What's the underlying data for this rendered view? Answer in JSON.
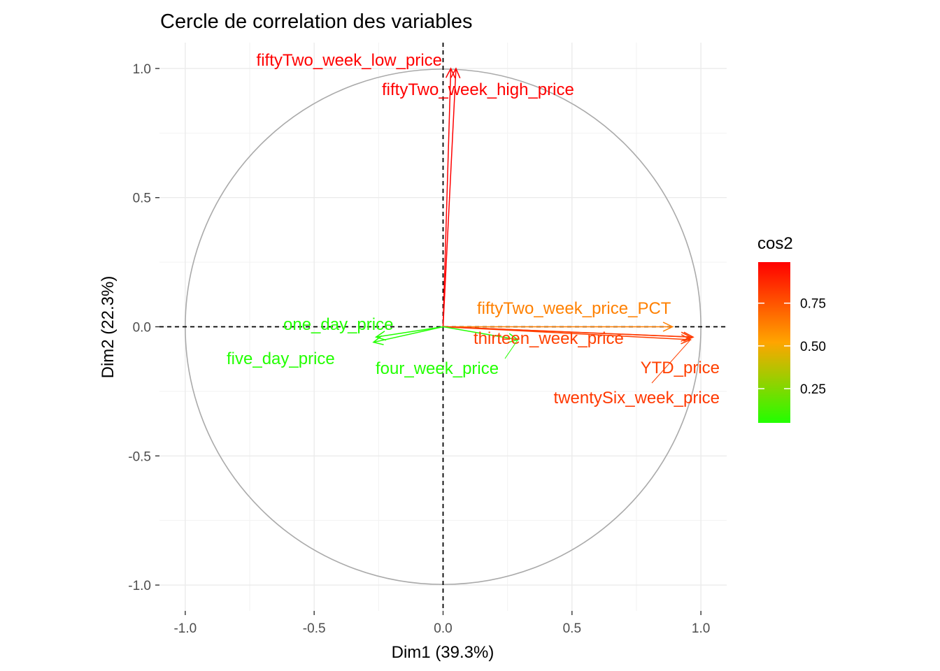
{
  "chart_data": {
    "type": "scatter",
    "subtype": "pca-correlation-circle",
    "title": "Cercle de correlation des variables",
    "xlabel": "Dim1 (39.3%)",
    "ylabel": "Dim2 (22.3%)",
    "xlim": [
      -1.1,
      1.1
    ],
    "ylim": [
      -1.1,
      1.1
    ],
    "xticks": [
      -1.0,
      -0.5,
      0.0,
      0.5,
      1.0
    ],
    "yticks": [
      -1.0,
      -0.5,
      0.0,
      0.5,
      1.0
    ],
    "x_tick_labels": [
      "-1.0",
      "-0.5",
      "0.0",
      "0.5",
      "1.0"
    ],
    "y_tick_labels": [
      "1.0",
      "0.5",
      "0.0",
      "-0.5",
      "-1.0"
    ],
    "grid": true,
    "unit_circle": true,
    "reference_lines": "dashed at x=0 and y=0",
    "legend": {
      "title": "cos2",
      "placement": "right",
      "gradient_low": "#22ff00",
      "gradient_mid": "#ffa500",
      "gradient_high": "#ff0000",
      "ticks": [
        "0.75",
        "0.50",
        "0.25"
      ]
    },
    "variables": [
      {
        "name": "fiftyTwo_week_low_price",
        "x": 0.03,
        "y": 1.0,
        "cos2": 0.99,
        "color": "#ff0000"
      },
      {
        "name": "fiftyTwo_week_high_price",
        "x": 0.05,
        "y": 1.0,
        "cos2": 0.99,
        "color": "#ff0000"
      },
      {
        "name": "fiftyTwo_week_price_PCT",
        "x": 0.89,
        "y": 0.0,
        "cos2": 0.79,
        "color": "#ff8000"
      },
      {
        "name": "thirteen_week_price",
        "x": 0.96,
        "y": -0.04,
        "cos2": 0.92,
        "color": "#ff4000"
      },
      {
        "name": "YTD_price",
        "x": 0.96,
        "y": -0.05,
        "cos2": 0.92,
        "color": "#ff4000"
      },
      {
        "name": "twentySix_week_price",
        "x": 0.97,
        "y": -0.04,
        "cos2": 0.94,
        "color": "#ff3800"
      },
      {
        "name": "one_day_price",
        "x": -0.26,
        "y": -0.04,
        "cos2": 0.07,
        "color": "#22ff00"
      },
      {
        "name": "five_day_price",
        "x": -0.27,
        "y": -0.06,
        "cos2": 0.08,
        "color": "#22ff00"
      },
      {
        "name": "four_week_price",
        "x": 0.29,
        "y": -0.05,
        "cos2": 0.09,
        "color": "#22ff00"
      }
    ]
  }
}
